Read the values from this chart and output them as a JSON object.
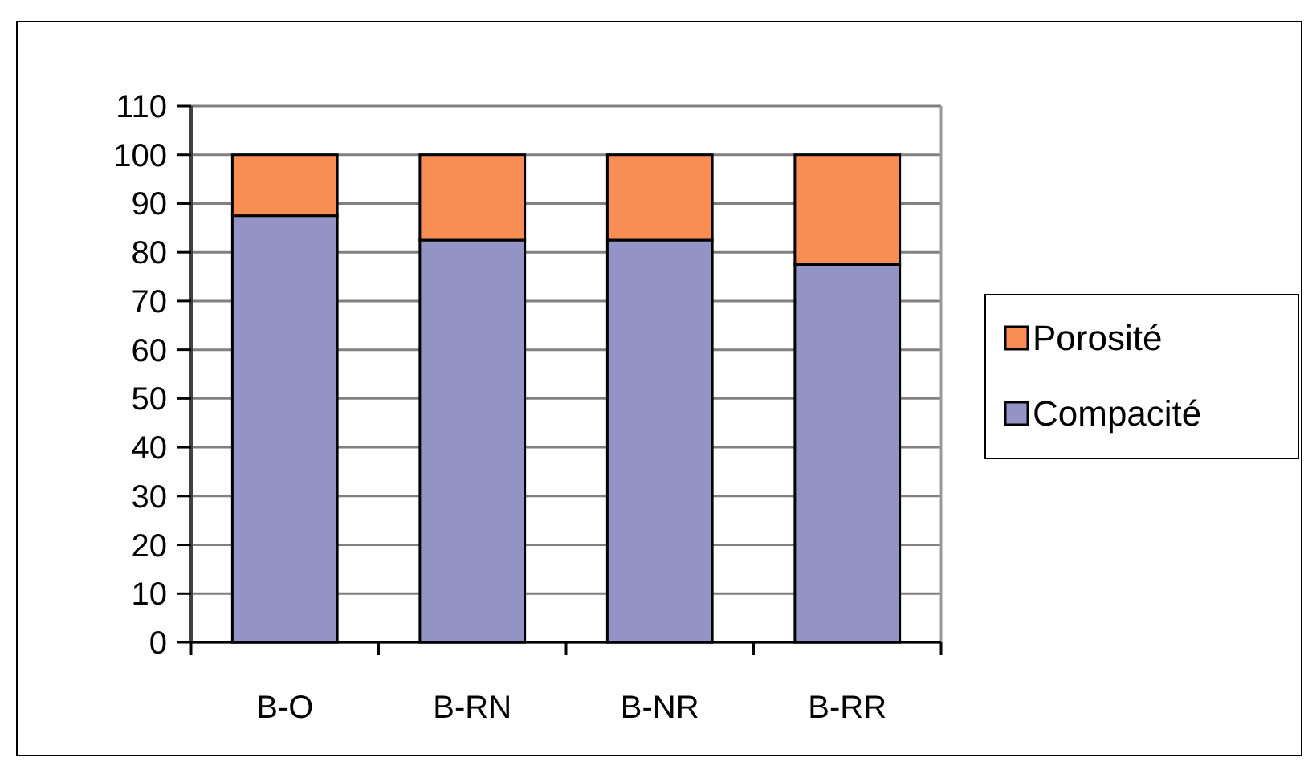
{
  "chart_data": {
    "type": "bar",
    "stacked": true,
    "categories": [
      "B-O",
      "B-RN",
      "B-NR",
      "B-RR"
    ],
    "series": [
      {
        "name": "Compacité",
        "color": "#9393c5",
        "values": [
          87.5,
          82.5,
          82.5,
          77.5
        ]
      },
      {
        "name": "Porosité",
        "color": "#f98e55",
        "values": [
          12.5,
          17.5,
          17.5,
          22.5
        ]
      }
    ],
    "ylim": [
      0,
      110
    ],
    "yticks": [
      0,
      10,
      20,
      30,
      40,
      50,
      60,
      70,
      80,
      90,
      100,
      110
    ],
    "grid": "y",
    "legend": "right"
  }
}
